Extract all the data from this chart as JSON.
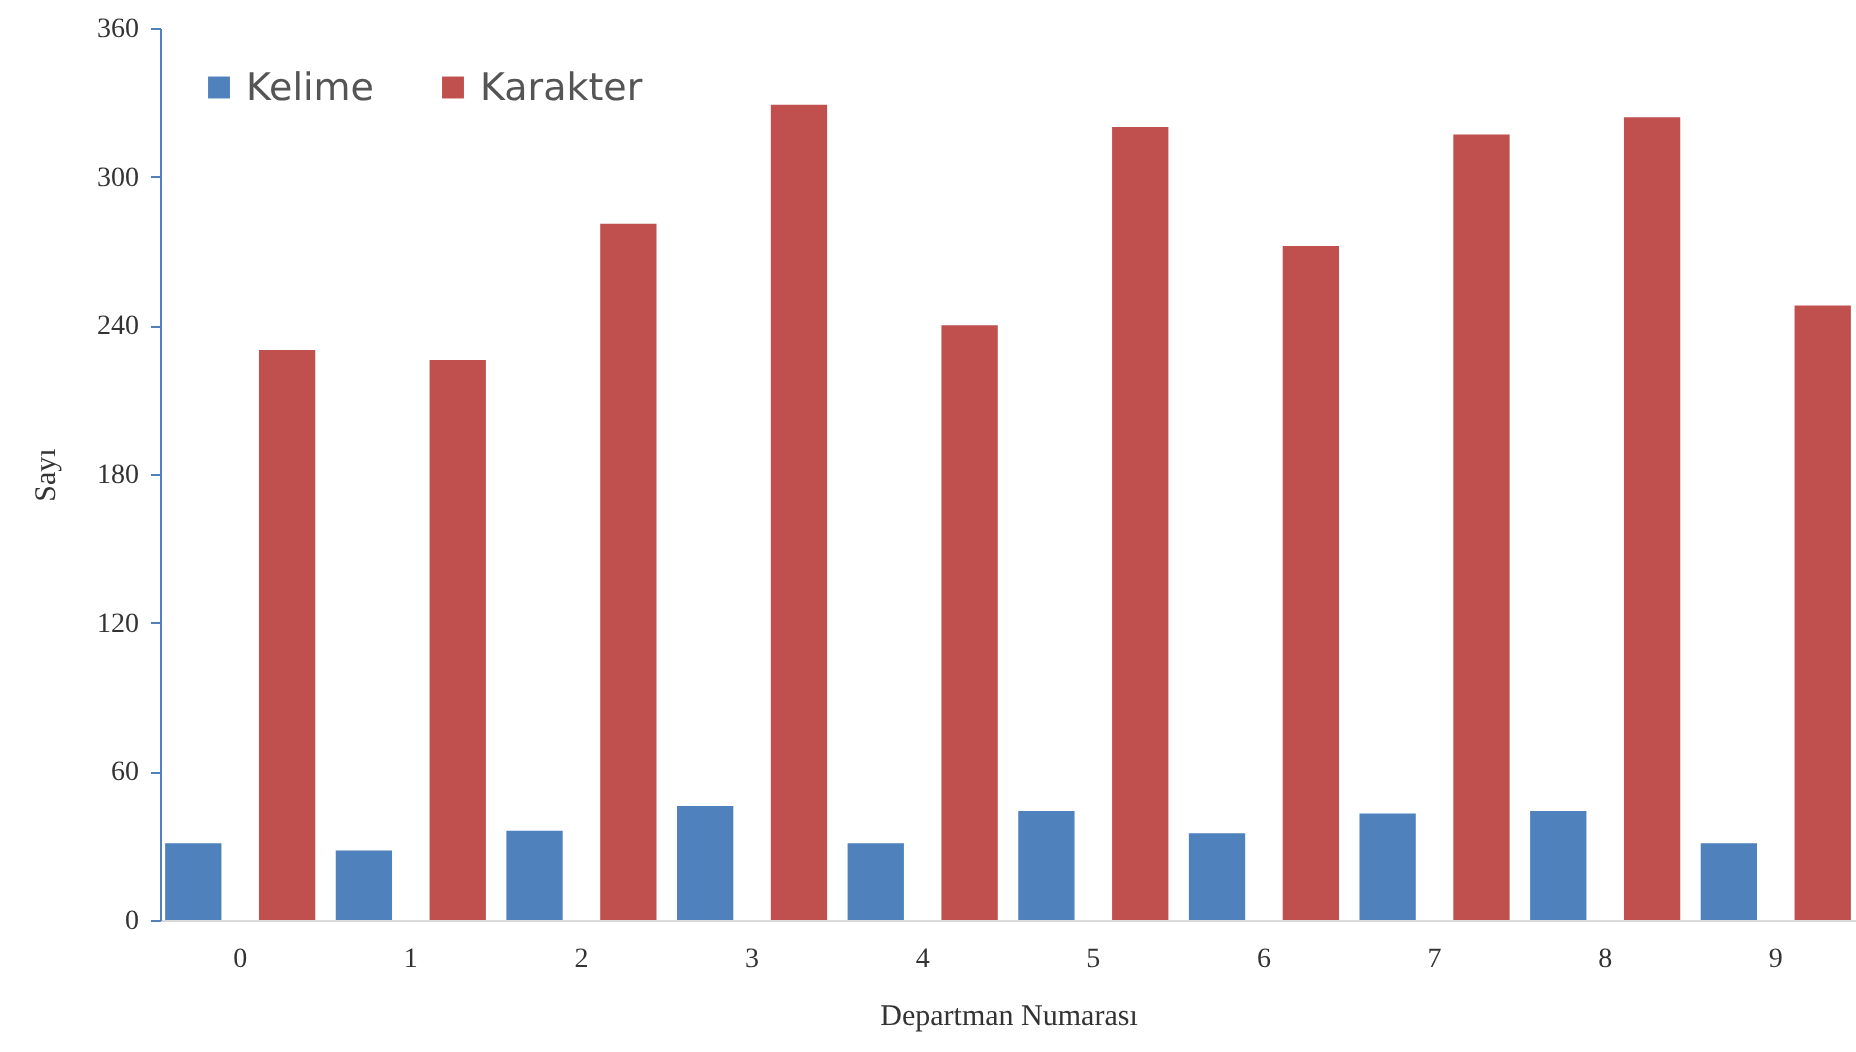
{
  "chart_data": {
    "type": "bar",
    "xlabel": "Departman  Numarası",
    "ylabel": "Sayı",
    "categories": [
      "0",
      "1",
      "2",
      "3",
      "4",
      "5",
      "6",
      "7",
      "8",
      "9"
    ],
    "series": [
      {
        "name": "Kelime",
        "color": "#4f81bd",
        "values": [
          31,
          28,
          36,
          46,
          31,
          44,
          35,
          43,
          44,
          31
        ]
      },
      {
        "name": "Karakter",
        "color": "#c0504d",
        "values": [
          230,
          226,
          281,
          329,
          240,
          320,
          272,
          317,
          324,
          248
        ]
      }
    ],
    "ylim": [
      0,
      360
    ],
    "yticks": [
      0,
      60,
      120,
      180,
      240,
      300,
      360
    ],
    "legend": "top left"
  }
}
